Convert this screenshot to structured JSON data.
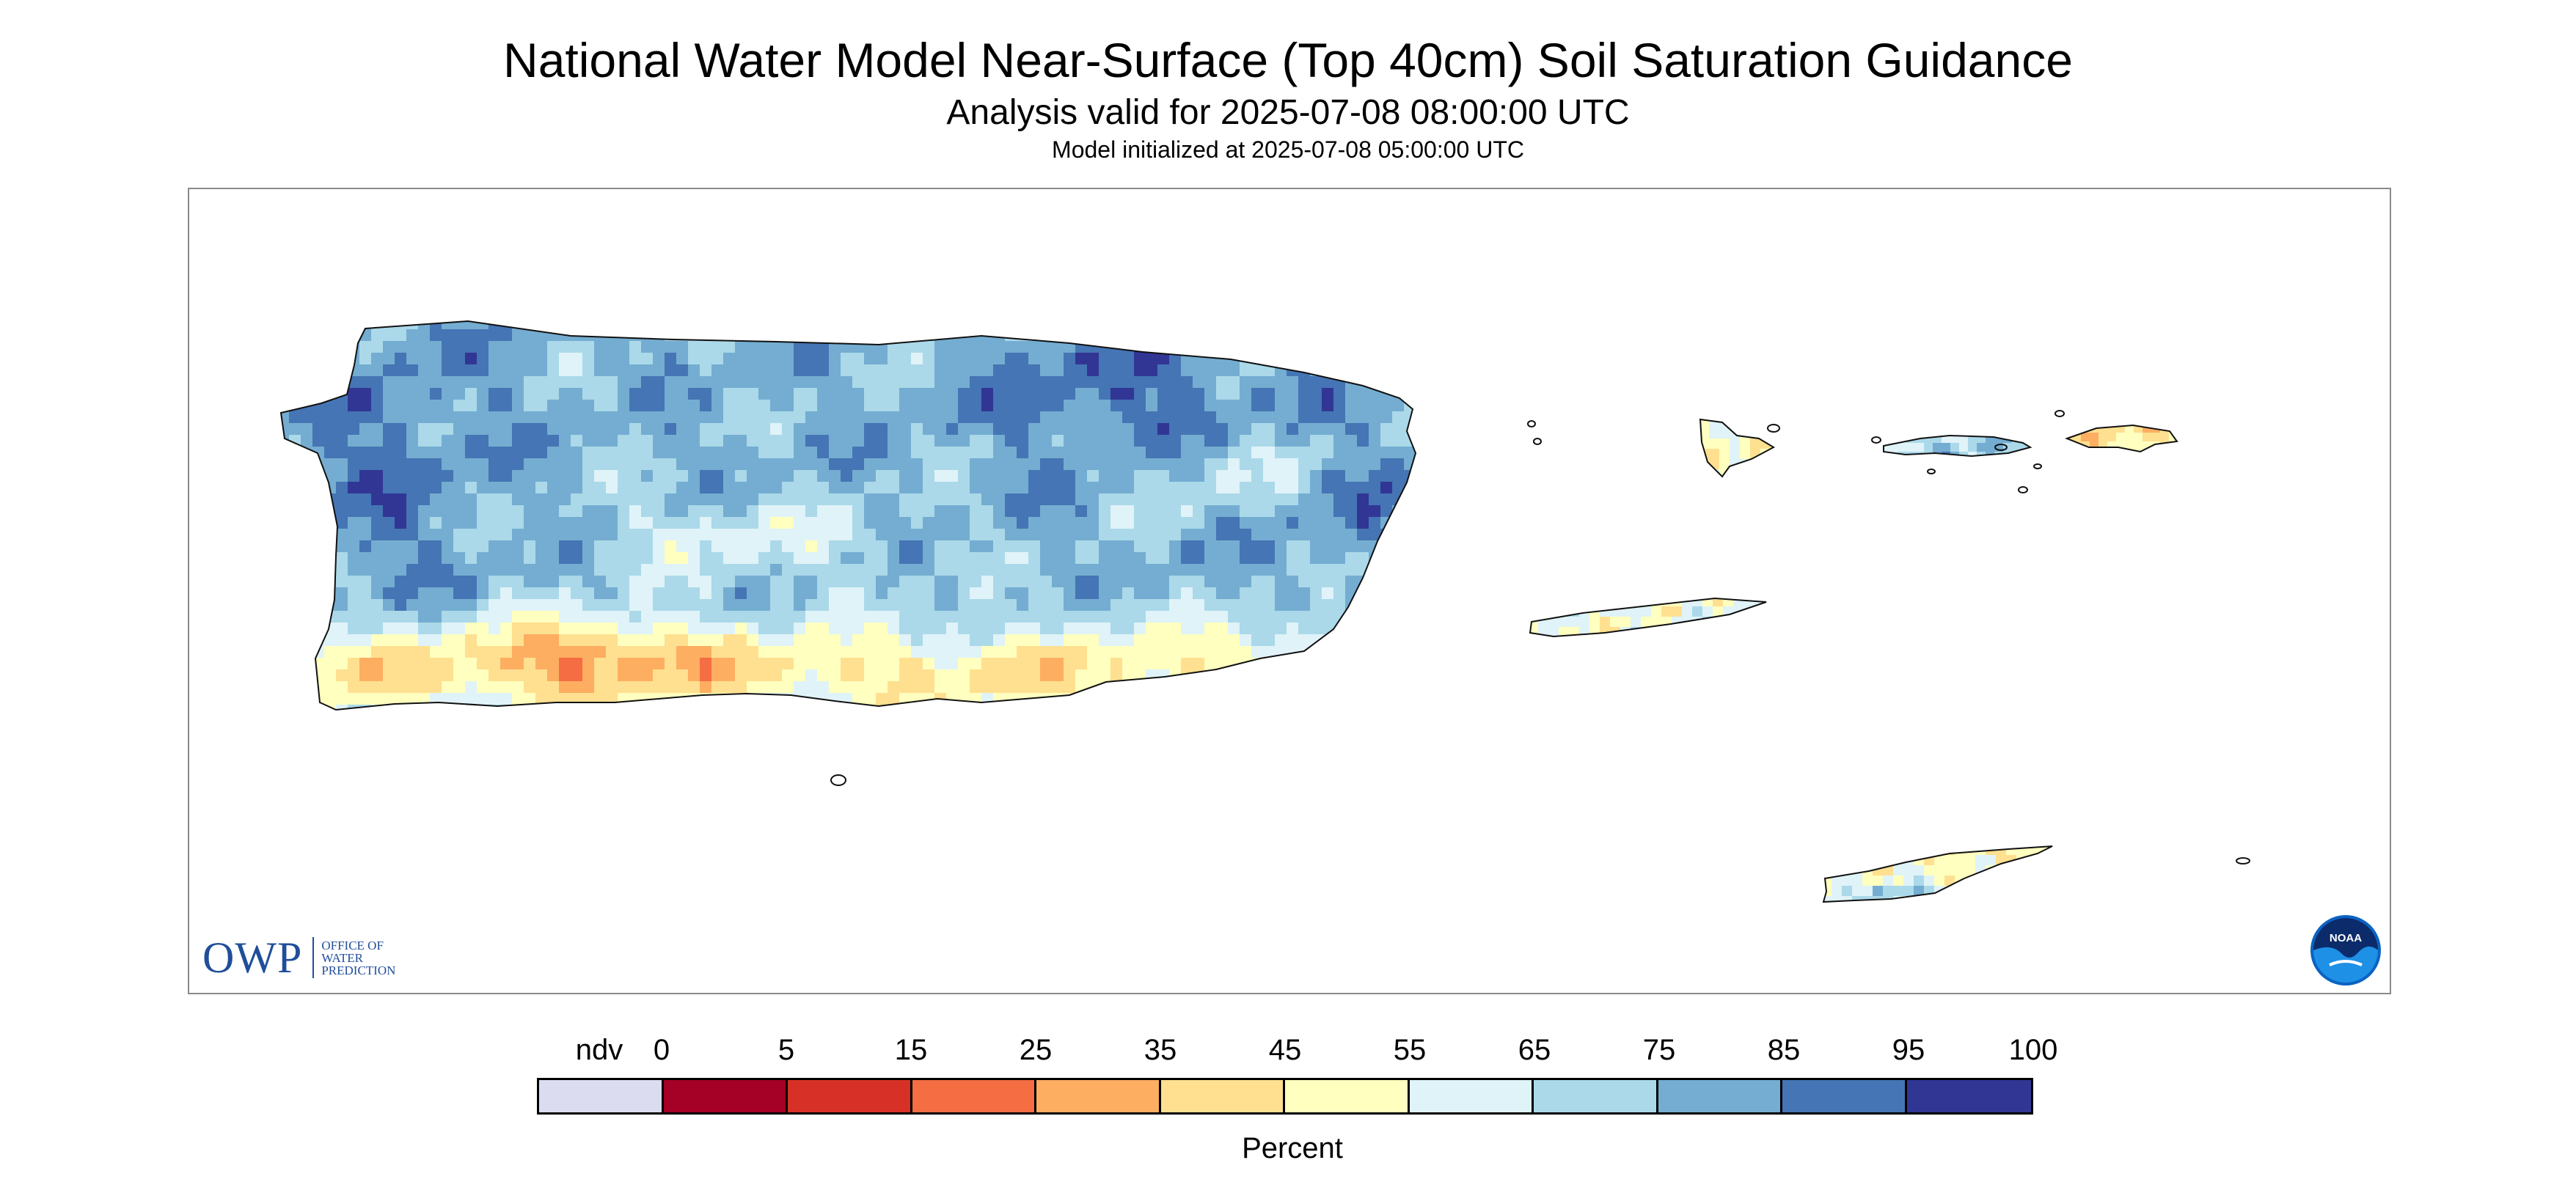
{
  "header": {
    "title": "National Water Model Near-Surface (Top 40cm) Soil Saturation Guidance",
    "subtitle": "Analysis valid for 2025-07-08 08:00:00 UTC",
    "initialized": "Model initialized at 2025-07-08 05:00:00 UTC"
  },
  "map": {
    "islands": [
      "Puerto Rico",
      "Vieques",
      "Culebra",
      "St. Thomas",
      "St. John",
      "St. Croix"
    ],
    "dominant_category": "75-95",
    "logos": {
      "owp": {
        "abbr": "OWP",
        "line1": "OFFICE OF",
        "line2": "WATER",
        "line3": "PREDICTION",
        "color": "#1f4e9a"
      },
      "noaa": {
        "text": "NOAA",
        "icon": "noaa-emblem-icon"
      }
    }
  },
  "legend": {
    "unit": "Percent",
    "ticks": [
      "ndv",
      "0",
      "5",
      "15",
      "25",
      "35",
      "45",
      "55",
      "65",
      "75",
      "85",
      "95",
      "100"
    ],
    "bins": [
      {
        "label": "ndv",
        "color": "#dcdcf0"
      },
      {
        "label": "0-5",
        "color": "#a50026"
      },
      {
        "label": "5-15",
        "color": "#d73027"
      },
      {
        "label": "15-25",
        "color": "#f46d43"
      },
      {
        "label": "25-35",
        "color": "#fdae61"
      },
      {
        "label": "35-45",
        "color": "#fee090"
      },
      {
        "label": "45-55",
        "color": "#ffffbf"
      },
      {
        "label": "55-65",
        "color": "#e0f3f8"
      },
      {
        "label": "65-75",
        "color": "#abd9e9"
      },
      {
        "label": "75-85",
        "color": "#74add1"
      },
      {
        "label": "85-95",
        "color": "#4575b4"
      },
      {
        "label": "95-100",
        "color": "#313695"
      }
    ]
  }
}
